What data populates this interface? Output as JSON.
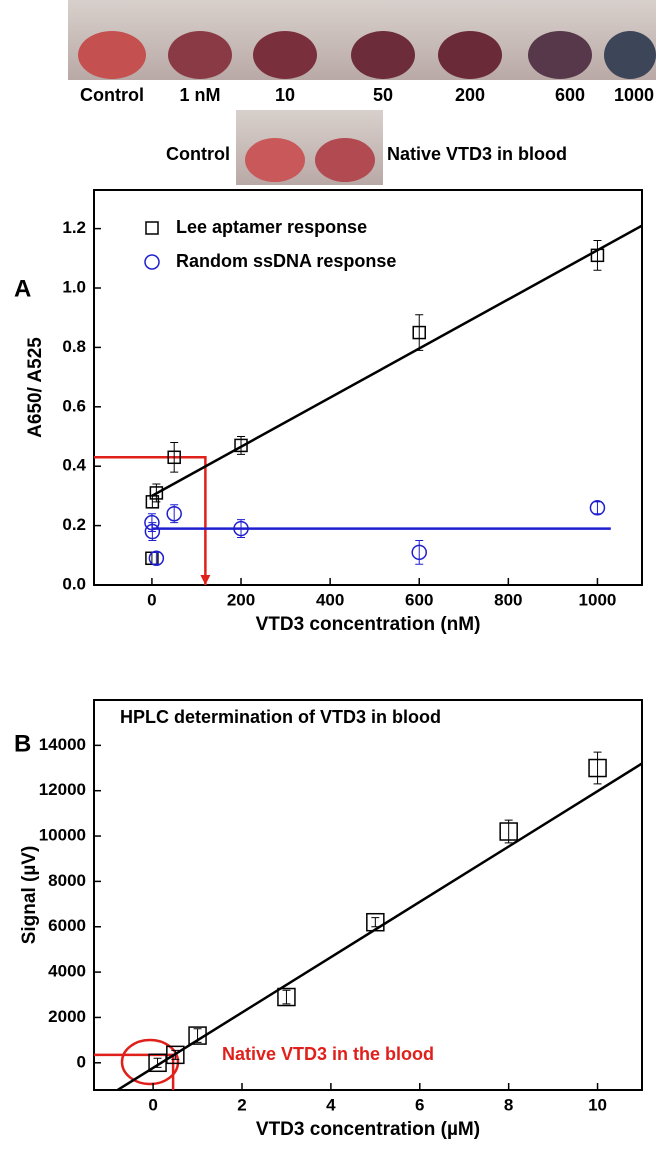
{
  "photo_labels": {
    "row1": [
      "Control",
      "1 nM",
      "10",
      "50",
      "200",
      "600",
      "1000"
    ],
    "row2": [
      "Control",
      "Native VTD3 in blood"
    ]
  },
  "chart_data": [
    {
      "type": "scatter",
      "panel": "A",
      "xlabel": "VTD3 concentration (nM)",
      "ylabel": "A650/ A525",
      "xlim": [
        -130,
        1100
      ],
      "ylim": [
        0,
        1.33
      ],
      "xticks": [
        0,
        200,
        400,
        600,
        800,
        1000
      ],
      "yticks": [
        {
          "value": 0,
          "label": "0.0"
        },
        0.2,
        0.4,
        0.6,
        0.8,
        {
          "value": 1,
          "label": "1.0"
        },
        1.2
      ],
      "legend": "upper left",
      "series": [
        {
          "name": "Lee aptamer response",
          "color": "#000000",
          "marker": "square",
          "x": [
            0,
            1,
            10,
            50,
            200,
            600,
            1000
          ],
          "values": [
            0.09,
            0.28,
            0.31,
            0.43,
            0.47,
            0.85,
            1.11
          ],
          "errors": [
            0.02,
            0.02,
            0.03,
            0.05,
            0.03,
            0.06,
            0.05
          ],
          "fit": {
            "x": [
              0,
              1100
            ],
            "y": [
              0.3,
              1.21
            ]
          }
        },
        {
          "name": "Random ssDNA response",
          "color": "#1f1fd0",
          "marker": "circle",
          "x": [
            0,
            1,
            10,
            50,
            200,
            600,
            1000
          ],
          "values": [
            0.21,
            0.18,
            0.09,
            0.24,
            0.19,
            0.11,
            0.26
          ],
          "errors": [
            0.03,
            0.03,
            0.02,
            0.03,
            0.03,
            0.04,
            0.02
          ],
          "fit": {
            "x": [
              0,
              1030
            ],
            "y": [
              0.19,
              0.19
            ]
          }
        }
      ],
      "guide": {
        "color": "#e0201b",
        "x": [
          -130,
          120,
          120
        ],
        "y": [
          0.43,
          0.43,
          0
        ]
      }
    },
    {
      "type": "scatter",
      "panel": "B",
      "title": "HPLC determination of VTD3 in blood",
      "annotation": "Native VTD3 in the blood",
      "xlabel": "VTD3 concentration (µM)",
      "ylabel": "Signal (µV)",
      "xlim": [
        -1.33,
        11
      ],
      "ylim": [
        -1200,
        16000
      ],
      "xticks": [
        0,
        2,
        4,
        6,
        8,
        10
      ],
      "yticks": [
        0,
        2000,
        4000,
        6000,
        8000,
        10000,
        12000,
        14000
      ],
      "series": [
        {
          "color": "#000000",
          "marker": "square",
          "x": [
            0.1,
            0.5,
            1,
            3,
            5,
            8,
            10
          ],
          "values": [
            0,
            350,
            1200,
            2900,
            6200,
            10200,
            13000
          ],
          "errors": [
            200,
            200,
            300,
            300,
            200,
            500,
            700
          ],
          "fit": {
            "x": [
              -0.8,
              11
            ],
            "y": [
              -1200,
              13200
            ]
          }
        }
      ],
      "guide": {
        "color": "#e0201b",
        "x": [
          -1.33,
          0.45,
          0.45
        ],
        "y": [
          350,
          350,
          -1200
        ]
      }
    }
  ]
}
